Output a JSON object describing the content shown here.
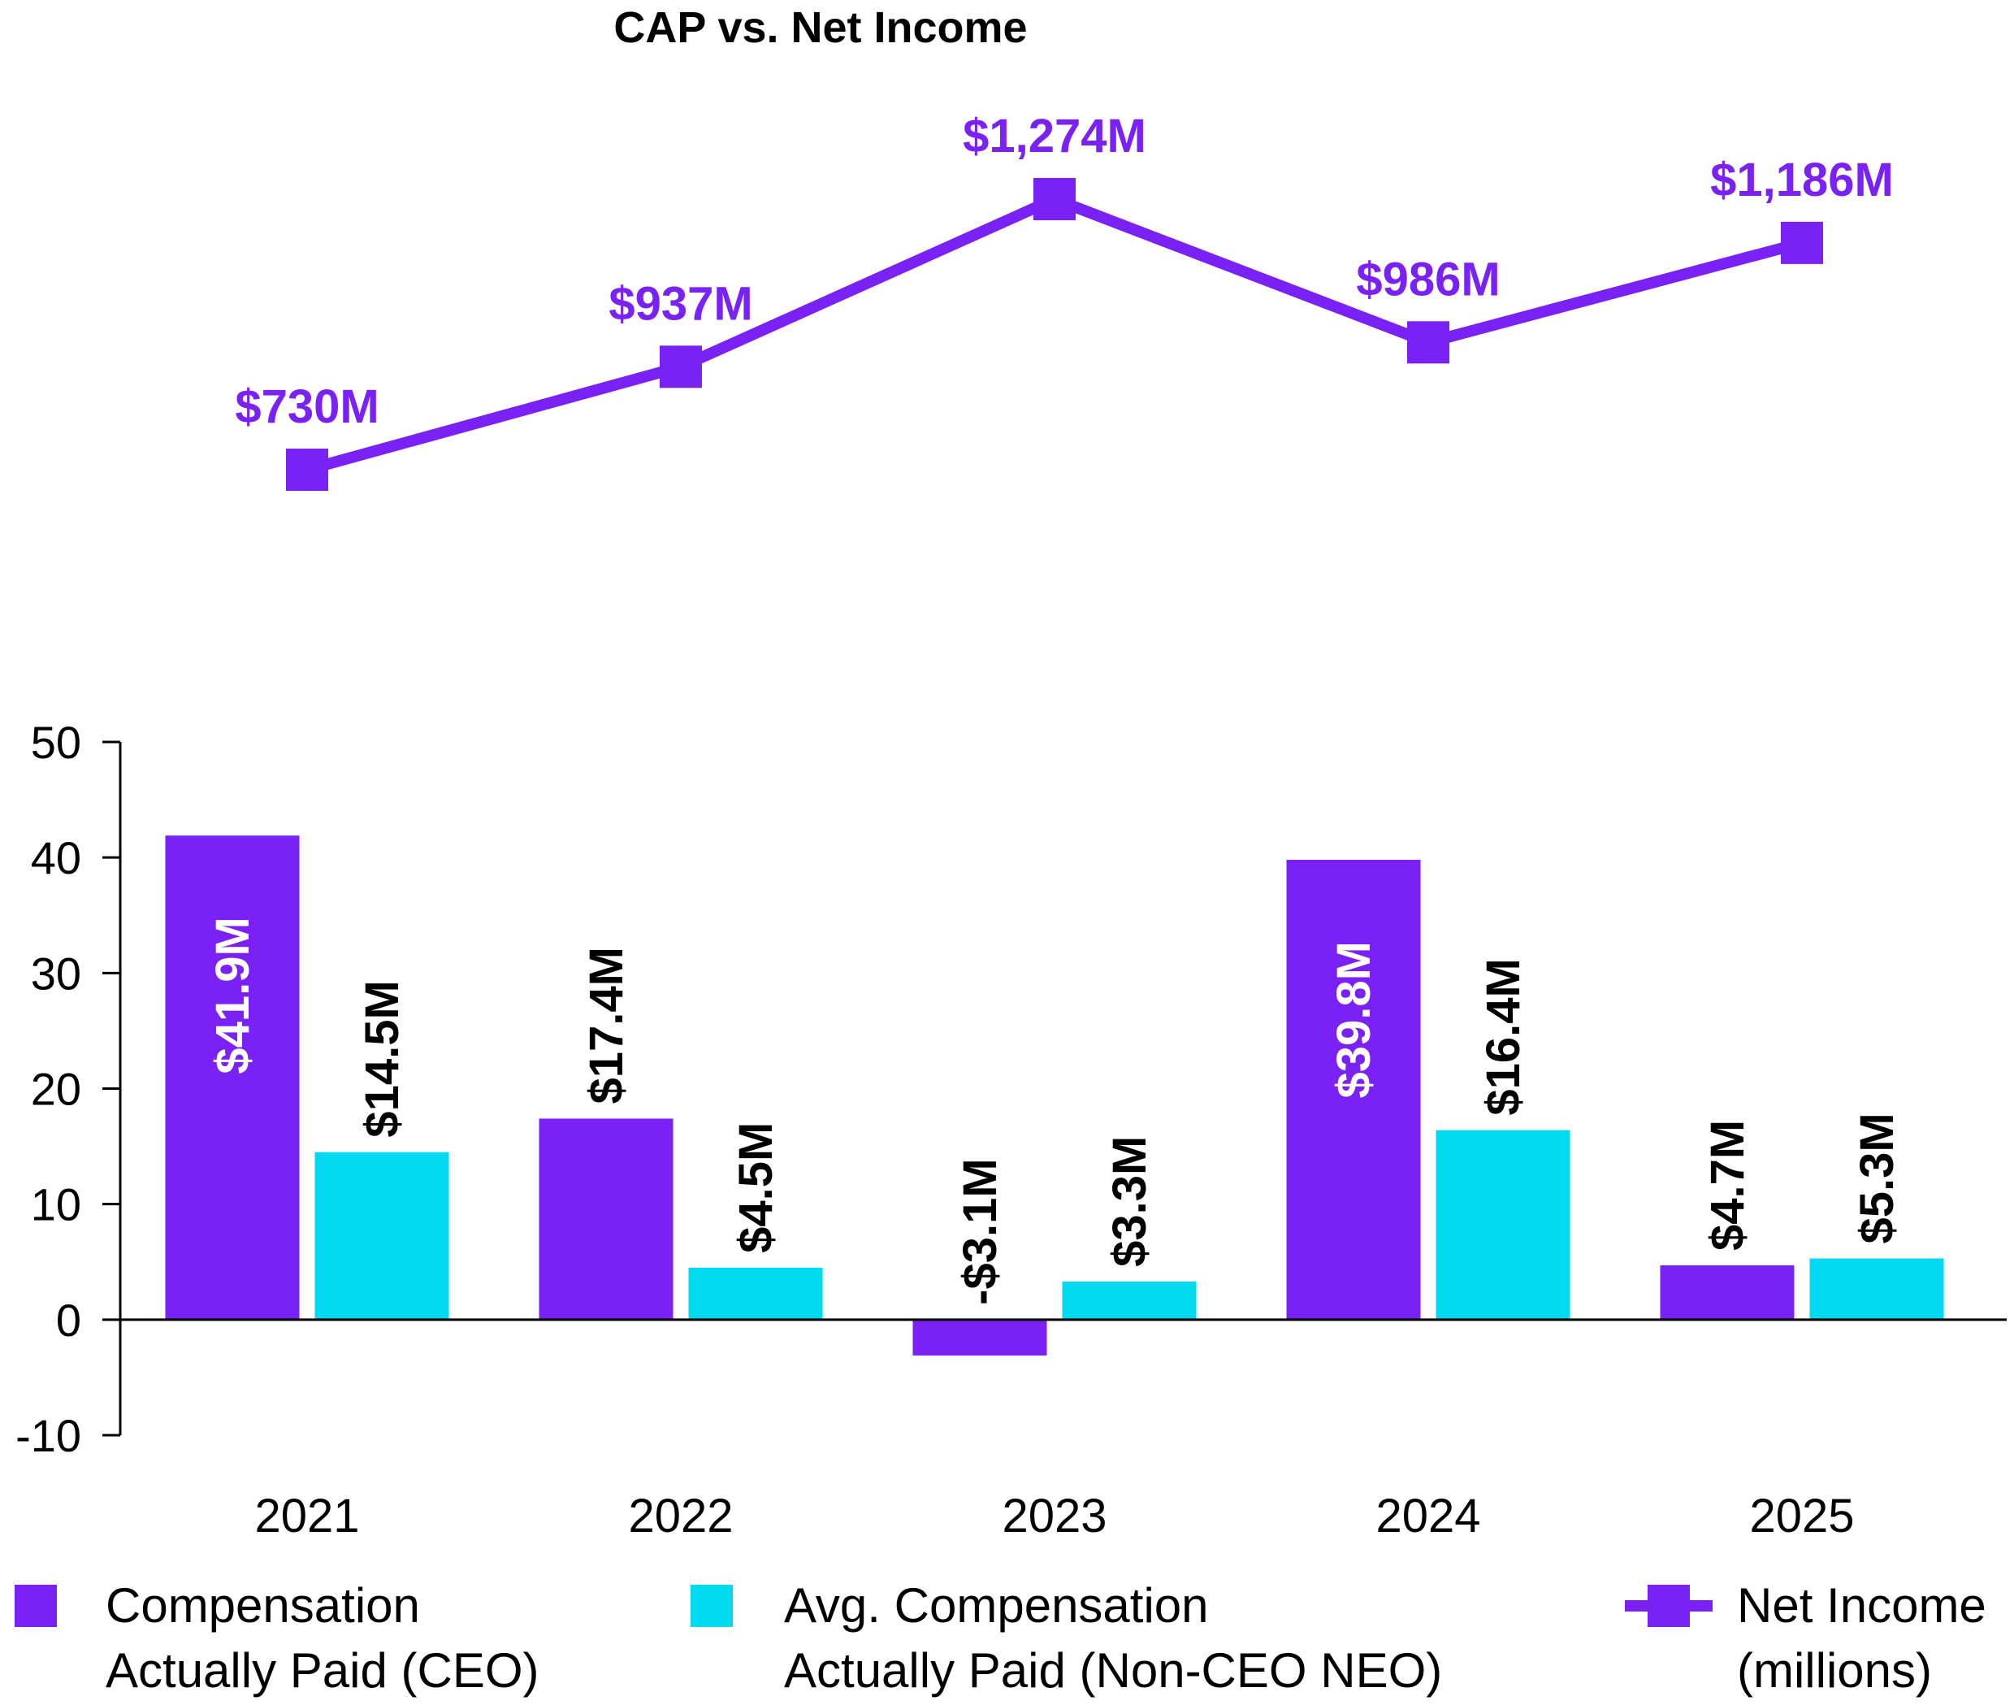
{
  "chart_data": {
    "title": "CAP vs. Net Income",
    "categories": [
      "2021",
      "2022",
      "2023",
      "2024",
      "2025"
    ],
    "bar_chart": {
      "type": "bar",
      "ylim": [
        -10,
        50
      ],
      "yticks": [
        50,
        40,
        30,
        20,
        10,
        0,
        -10
      ],
      "series": [
        {
          "name": "Compensation Actually Paid (CEO)",
          "legend_lines": [
            "Compensation",
            "Actually Paid (CEO)"
          ],
          "color": "#7a22f5",
          "values": [
            41.9,
            17.4,
            -3.1,
            39.8,
            4.7
          ],
          "labels": [
            "$41.9M",
            "$17.4M",
            "-$3.1M",
            "$39.8M",
            "$4.7M"
          ],
          "label_inside_bar": [
            true,
            false,
            false,
            true,
            false
          ]
        },
        {
          "name": "Avg. Compensation Actually Paid (Non-CEO NEO)",
          "legend_lines": [
            "Avg. Compensation",
            "Actually Paid (Non-CEO NEO)"
          ],
          "color": "#00d9f0",
          "values": [
            14.5,
            4.5,
            3.3,
            16.4,
            5.3
          ],
          "labels": [
            "$14.5M",
            "$4.5M",
            "$3.3M",
            "$16.4M",
            "$5.3M"
          ]
        }
      ]
    },
    "line_chart": {
      "type": "line",
      "series": [
        {
          "name": "Net Income (millions)",
          "legend_lines": [
            "Net Income",
            "(millions)"
          ],
          "color": "#7a22f5",
          "marker": "square",
          "values": [
            730,
            937,
            1274,
            986,
            1186
          ],
          "labels": [
            "$730M",
            "$937M",
            "$1,274M",
            "$986M",
            "$1,186M"
          ]
        }
      ]
    }
  }
}
